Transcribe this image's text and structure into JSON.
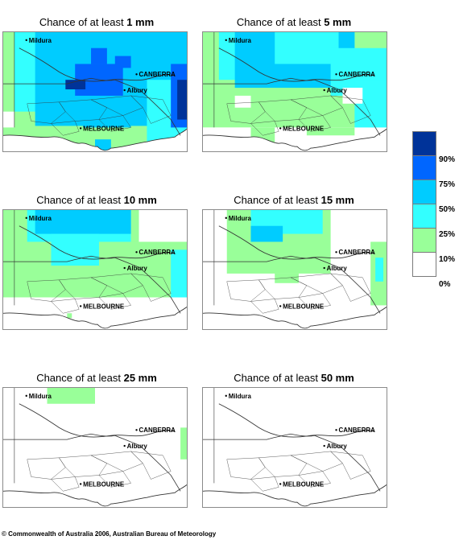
{
  "panels": [
    {
      "title_prefix": "Chance of at least ",
      "title_value": "1 mm"
    },
    {
      "title_prefix": "Chance of at least ",
      "title_value": "5 mm"
    },
    {
      "title_prefix": "Chance of at least ",
      "title_value": "10 mm"
    },
    {
      "title_prefix": "Chance of at least ",
      "title_value": "15 mm"
    },
    {
      "title_prefix": "Chance of at least ",
      "title_value": "25 mm"
    },
    {
      "title_prefix": "Chance of at least ",
      "title_value": "50 mm"
    }
  ],
  "places": {
    "mildura": "Mildura",
    "canberra": "CANBERRA",
    "albury": "Albury",
    "melbourne": "MELBOURNE"
  },
  "legend": [
    {
      "label": "90%",
      "color": "#003399"
    },
    {
      "label": "75%",
      "color": "#0066ff"
    },
    {
      "label": "50%",
      "color": "#00ccff"
    },
    {
      "label": "25%",
      "color": "#33ffff"
    },
    {
      "label": "10%",
      "color": "#99ff99"
    },
    {
      "label": "0%",
      "color": "#ffffff"
    }
  ],
  "copyright": "© Commonwealth of Australia 2006, Australian Bureau of Meteorology"
}
